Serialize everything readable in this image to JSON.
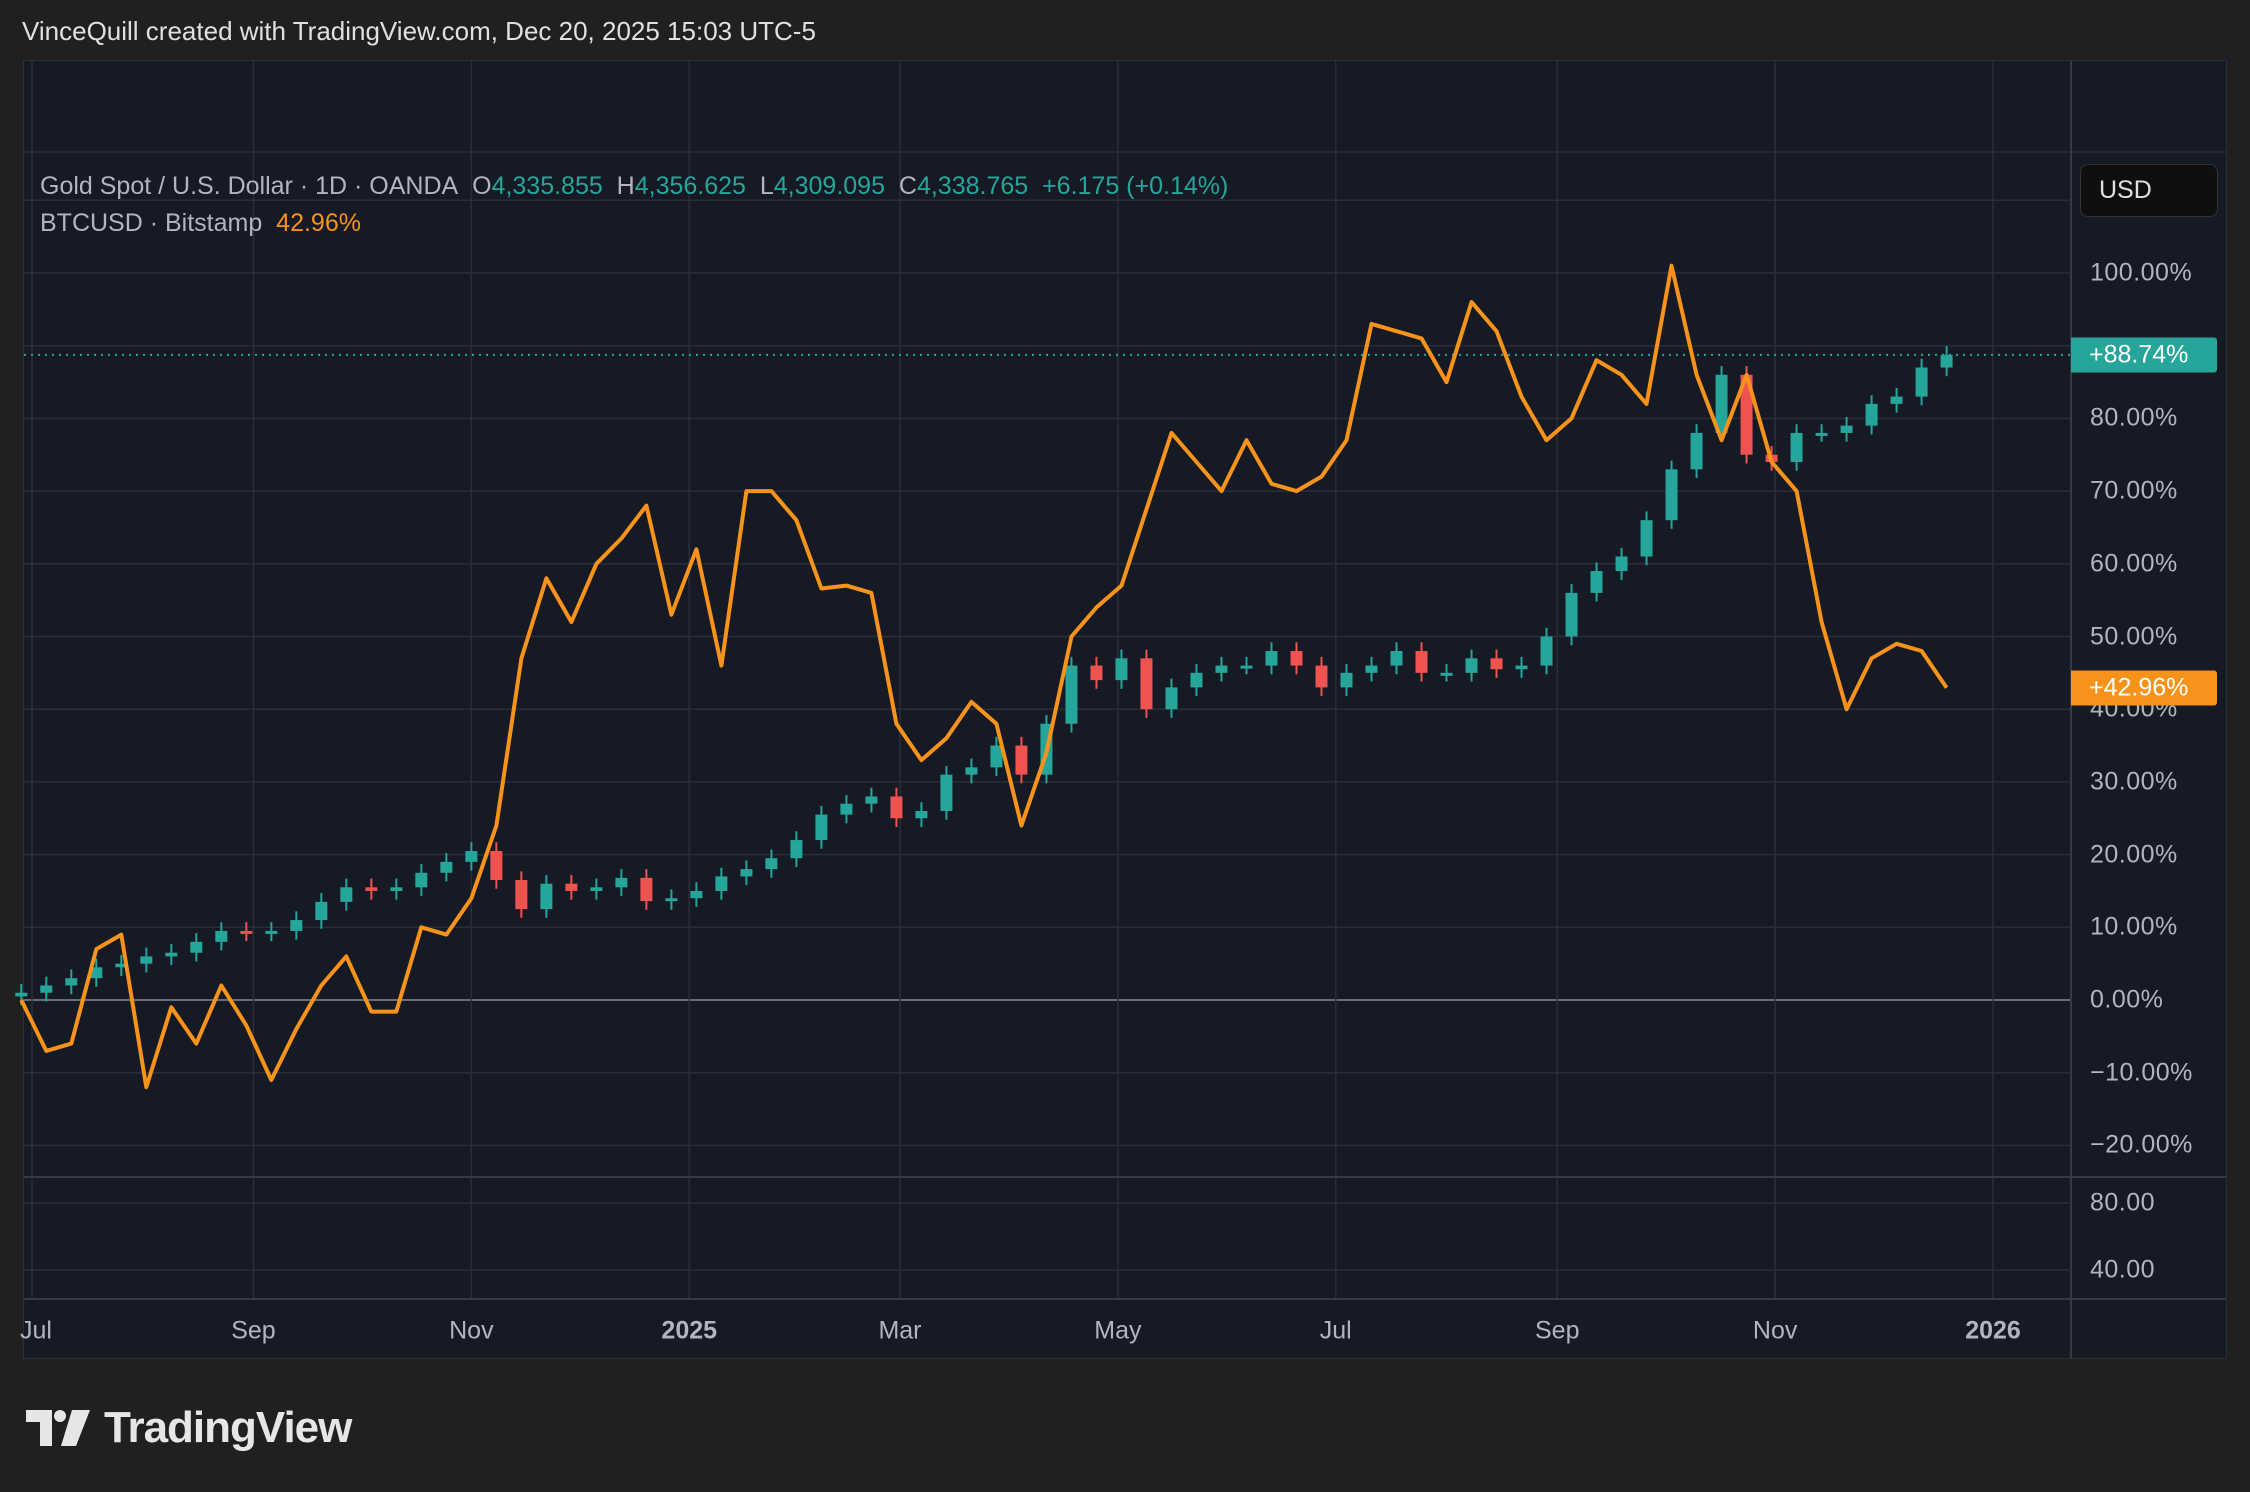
{
  "header": "VinceQuill created with TradingView.com, Dec 20, 2025 15:03 UTC-5",
  "legend": {
    "symbol": "Gold Spot / U.S. Dollar · 1D · OANDA",
    "o_label": "O",
    "o": "4,335.855",
    "h_label": "H",
    "h": "4,356.625",
    "l_label": "L",
    "l": "4,309.095",
    "c_label": "C",
    "c": "4,338.765",
    "change": "+6.175 (+0.14%)",
    "compare_symbol": "BTCUSD · Bitstamp",
    "compare_value": "42.96%"
  },
  "currency_button": "USD",
  "colors": {
    "up": "#26a69a",
    "down": "#ef5350",
    "btc": "#f7931a",
    "background": "#161a25",
    "grid": "#2a2e39"
  },
  "logo": {
    "text": "TradingView"
  },
  "chart_data": {
    "type": "line",
    "ylim": [
      -20,
      100
    ],
    "y_ticks": [
      "100.00%",
      "80.00%",
      "70.00%",
      "60.00%",
      "50.00%",
      "40.00%",
      "30.00%",
      "20.00%",
      "10.00%",
      "0.00%",
      "−10.00%",
      "−20.00%"
    ],
    "y_tick_values": [
      100,
      80,
      70,
      60,
      50,
      40,
      30,
      20,
      10,
      0,
      -10,
      -20
    ],
    "lower_pane_ticks": [
      "80.00",
      "40.00"
    ],
    "x_ticks": [
      {
        "label": "Jul",
        "date": "2024-07-01",
        "bold": false
      },
      {
        "label": "Sep",
        "date": "2024-09-01",
        "bold": false
      },
      {
        "label": "Nov",
        "date": "2024-11-01",
        "bold": false
      },
      {
        "label": "2025",
        "date": "2025-01-01",
        "bold": true
      },
      {
        "label": "Mar",
        "date": "2025-03-01",
        "bold": false
      },
      {
        "label": "May",
        "date": "2025-05-01",
        "bold": false
      },
      {
        "label": "Jul",
        "date": "2025-07-01",
        "bold": false
      },
      {
        "label": "Sep",
        "date": "2025-09-01",
        "bold": false
      },
      {
        "label": "Nov",
        "date": "2025-11-01",
        "bold": false
      },
      {
        "label": "2026",
        "date": "2026-01-01",
        "bold": true
      }
    ],
    "grid": true,
    "x": [
      "2024-06-28",
      "2024-07-05",
      "2024-07-12",
      "2024-07-19",
      "2024-07-26",
      "2024-08-02",
      "2024-08-09",
      "2024-08-16",
      "2024-08-23",
      "2024-08-30",
      "2024-09-06",
      "2024-09-13",
      "2024-09-20",
      "2024-09-27",
      "2024-10-04",
      "2024-10-11",
      "2024-10-18",
      "2024-10-25",
      "2024-11-01",
      "2024-11-08",
      "2024-11-15",
      "2024-11-22",
      "2024-11-29",
      "2024-12-06",
      "2024-12-13",
      "2024-12-20",
      "2024-12-27",
      "2025-01-03",
      "2025-01-10",
      "2025-01-17",
      "2025-01-24",
      "2025-01-31",
      "2025-02-07",
      "2025-02-14",
      "2025-02-21",
      "2025-02-28",
      "2025-03-07",
      "2025-03-14",
      "2025-03-21",
      "2025-03-28",
      "2025-04-04",
      "2025-04-11",
      "2025-04-18",
      "2025-04-25",
      "2025-05-02",
      "2025-05-09",
      "2025-05-16",
      "2025-05-23",
      "2025-05-30",
      "2025-06-06",
      "2025-06-13",
      "2025-06-20",
      "2025-06-27",
      "2025-07-04",
      "2025-07-11",
      "2025-07-18",
      "2025-07-25",
      "2025-08-01",
      "2025-08-08",
      "2025-08-15",
      "2025-08-22",
      "2025-08-29",
      "2025-09-05",
      "2025-09-12",
      "2025-09-19",
      "2025-09-26",
      "2025-10-03",
      "2025-10-10",
      "2025-10-17",
      "2025-10-24",
      "2025-10-31",
      "2025-11-07",
      "2025-11-14",
      "2025-11-21",
      "2025-11-28",
      "2025-12-05",
      "2025-12-12",
      "2025-12-19"
    ],
    "series": [
      {
        "name": "Gold Spot / U.S. Dollar",
        "style": "candles",
        "last_label": "+88.74%",
        "values": [
          1,
          2,
          3,
          4.5,
          5,
          6,
          6.5,
          8,
          9.5,
          9.3,
          9.5,
          11,
          13.5,
          15.5,
          15,
          15.5,
          17.5,
          19,
          20.5,
          16.5,
          12.5,
          16,
          15,
          15.5,
          16.8,
          13.6,
          14,
          15,
          17,
          18,
          19.5,
          22,
          25.5,
          27,
          28,
          25,
          26,
          31,
          32,
          35,
          31,
          38,
          46,
          44,
          47,
          40,
          43,
          45,
          46,
          46,
          48,
          46,
          43,
          45,
          46,
          48,
          45,
          45,
          47,
          45.5,
          46,
          50,
          56,
          59,
          61,
          66,
          73,
          78,
          86,
          75,
          74,
          78,
          78,
          79,
          82,
          83,
          87,
          88.74
        ]
      },
      {
        "name": "BTCUSD · Bitstamp",
        "style": "line",
        "last_label": "+42.96%",
        "values": [
          0,
          -7,
          -6,
          7,
          9,
          -12,
          -1,
          -6,
          2,
          -3.5,
          -11,
          -4,
          2,
          6,
          -1.6,
          -1.6,
          10,
          9,
          14,
          24,
          47,
          58,
          52,
          60,
          63.5,
          68,
          53,
          62,
          46,
          70,
          70,
          66,
          56.6,
          57,
          56,
          38,
          33,
          36,
          41,
          38,
          24,
          34,
          50,
          54,
          57,
          67.5,
          78,
          74,
          70,
          77,
          71,
          70,
          72,
          77,
          93,
          92,
          91,
          85,
          96,
          92,
          83,
          77,
          80,
          88,
          86,
          82,
          101,
          86,
          77,
          86,
          74,
          70,
          52,
          40,
          47,
          49,
          48,
          42.96
        ]
      }
    ]
  }
}
